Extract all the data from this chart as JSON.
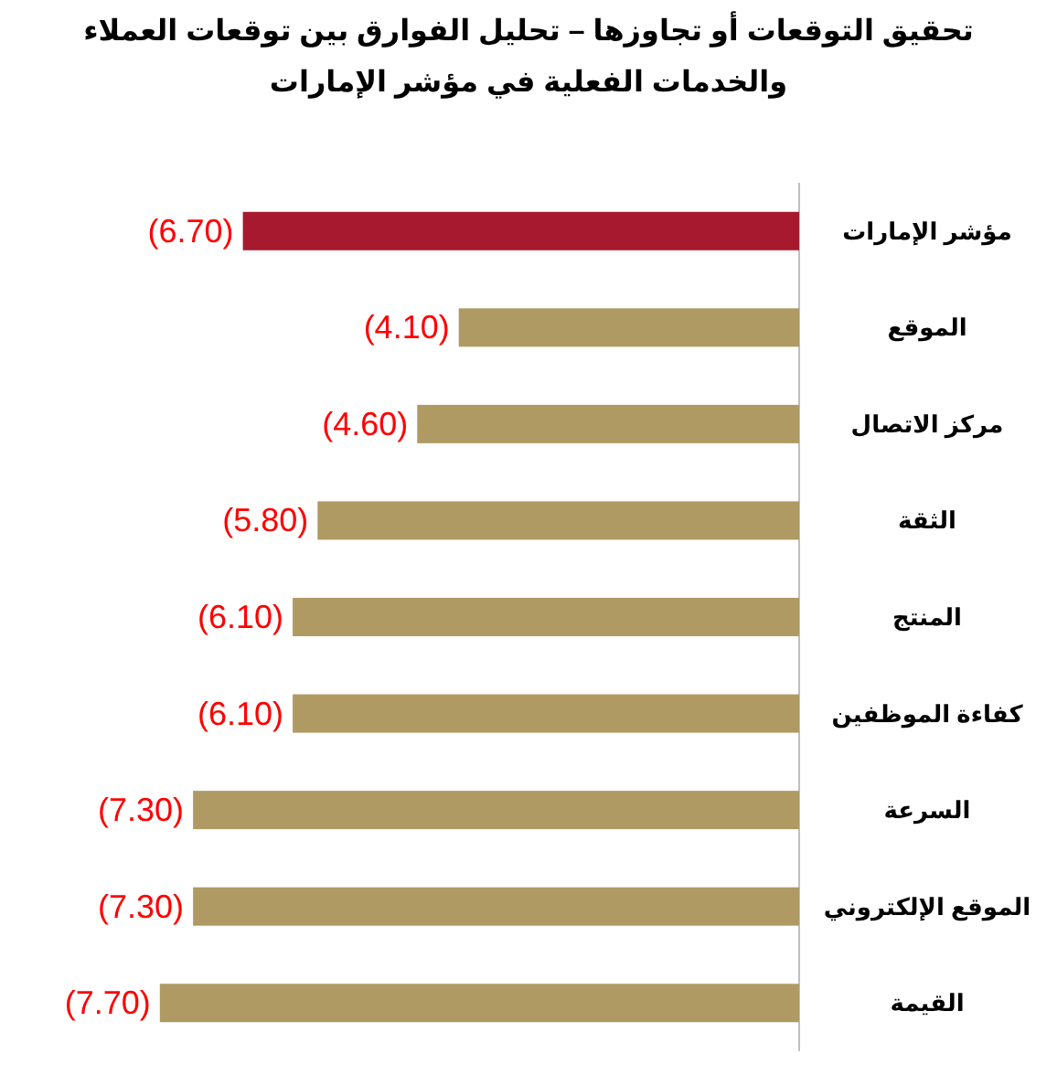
{
  "chart_data": {
    "type": "bar",
    "orientation": "horizontal",
    "title": "تحقيق التوقعات أو تجاوزها – تحليل الفوارق بين توقعات العملاء والخدمات الفعلية في مؤشر الإمارات",
    "categories": [
      "مؤشر الإمارات",
      "الموقع",
      "مركز الاتصال",
      "الثقة",
      "المنتج",
      "كفاءة الموظفين",
      "السرعة",
      "الموقع الإلكتروني",
      "القيمة"
    ],
    "values": [
      -6.7,
      -4.1,
      -4.6,
      -5.8,
      -6.1,
      -6.1,
      -7.3,
      -7.3,
      -7.7
    ],
    "value_labels": [
      "(6.70)",
      "(4.10)",
      "(4.60)",
      "(5.80)",
      "(6.10)",
      "(6.10)",
      "(7.30)",
      "(7.30)",
      "(7.70)"
    ],
    "colors": [
      "#a6192e",
      "#b09a63",
      "#b09a63",
      "#b09a63",
      "#b09a63",
      "#b09a63",
      "#b09a63",
      "#b09a63",
      "#b09a63"
    ]
  }
}
